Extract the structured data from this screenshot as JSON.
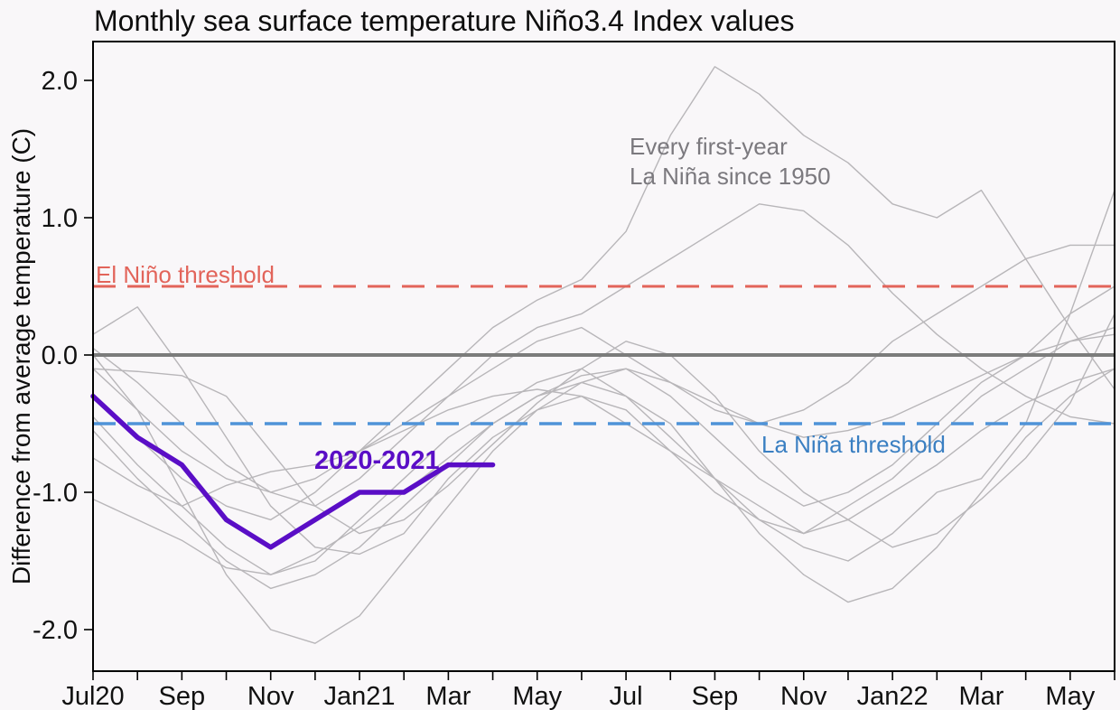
{
  "page": {
    "background": "#f9f7f9"
  },
  "annotations": {
    "background_series_label": "Every first-year\nLa Niña since 1950",
    "el_nino_label": "El Niño threshold",
    "la_nina_label": "La Niña threshold",
    "highlight_label": "2020-2021"
  },
  "colors": {
    "el_nino_line": "#e2645a",
    "la_nina_line": "#4f93d8",
    "la_nina_text": "#3a7fc2",
    "zero_line": "#7c7c7c",
    "highlight": "#5a0ec6",
    "background_series": "#b8b6b9",
    "axis": "#000000",
    "tick_text": "#111111"
  },
  "chart_data": {
    "type": "line",
    "title": "Monthly sea surface temperature Niño3.4 Index values",
    "xlabel": "",
    "ylabel": "Difference from average temperature (C)",
    "grid": false,
    "legend_position": "none (inline text annotations)",
    "ylim": [
      -2.32,
      2.29
    ],
    "ytick_values": [
      2.0,
      1.0,
      0.0,
      -1.0,
      -2.0
    ],
    "ytick_labels": [
      "2.0",
      "1.0",
      "0.0",
      "-1.0",
      "-2.0"
    ],
    "months": [
      "Jul20",
      "Aug20",
      "Sep20",
      "Oct20",
      "Nov20",
      "Dec20",
      "Jan21",
      "Feb21",
      "Mar21",
      "Apr21",
      "May21",
      "Jun21",
      "Jul21",
      "Aug21",
      "Sep21",
      "Oct21",
      "Nov21",
      "Dec21",
      "Jan22",
      "Feb22",
      "Mar22",
      "Apr22",
      "May22",
      "Jun22"
    ],
    "xtick_month_indices": [
      0,
      2,
      4,
      6,
      8,
      10,
      12,
      14,
      16,
      18,
      20,
      22
    ],
    "xtick_labels": [
      "Jul20",
      "Sep",
      "Nov",
      "Jan21",
      "Mar",
      "May",
      "Jul",
      "Sep",
      "Nov",
      "Jan22",
      "Mar",
      "May"
    ],
    "reference_lines": [
      {
        "name": "el-nino-threshold",
        "label": "El Niño threshold",
        "value": 0.5,
        "style": "dashed",
        "color": "#e2645a",
        "width": 3
      },
      {
        "name": "zero-line",
        "label": "",
        "value": 0.0,
        "style": "solid",
        "color": "#7c7c7c",
        "width": 4
      },
      {
        "name": "la-nina-threshold",
        "label": "La Niña threshold",
        "value": -0.5,
        "style": "dashed",
        "color": "#4f93d8",
        "width": 3.5
      }
    ],
    "highlight_series": {
      "label": "2020-2021",
      "color": "#5a0ec6",
      "start_month": "Jul20",
      "values": [
        -0.3,
        -0.6,
        -0.8,
        -1.2,
        -1.4,
        -1.2,
        -1.0,
        -1.0,
        -0.8,
        -0.8
      ]
    },
    "background_series": {
      "label": "Every first-year La Niña since 1950",
      "color": "#b8b6b9",
      "series": [
        [
          0.15,
          0.35,
          -0.1,
          -0.6,
          -1.1,
          -1.4,
          -1.45,
          -1.3,
          -0.9,
          -0.6,
          -0.4,
          -0.3,
          -0.4,
          -0.7,
          -1.0,
          -1.2,
          -1.3,
          -1.1,
          -0.9,
          -0.6,
          -0.3,
          -0.1,
          0.1,
          0.2
        ],
        [
          -0.3,
          -0.6,
          -0.9,
          -1.1,
          -1.2,
          -1.0,
          -0.7,
          -0.4,
          -0.1,
          0.2,
          0.4,
          0.55,
          0.9,
          1.6,
          2.1,
          1.9,
          1.6,
          1.4,
          1.1,
          1.0,
          1.2,
          0.7,
          0.2,
          -0.25
        ],
        [
          0.0,
          -0.4,
          -1.0,
          -1.6,
          -2.0,
          -2.1,
          -1.9,
          -1.5,
          -1.1,
          -0.7,
          -0.4,
          -0.2,
          -0.1,
          -0.3,
          -0.6,
          -0.9,
          -1.1,
          -1.0,
          -0.8,
          -0.5,
          -0.2,
          0.0,
          0.3,
          0.5
        ],
        [
          -0.1,
          -0.4,
          -0.7,
          -0.9,
          -1.0,
          -1.1,
          -0.9,
          -0.6,
          -0.3,
          0.0,
          0.2,
          0.3,
          0.5,
          0.7,
          0.9,
          1.1,
          1.05,
          0.8,
          0.45,
          0.15,
          -0.1,
          -0.3,
          -0.45,
          -0.5
        ],
        [
          -0.45,
          -0.8,
          -1.1,
          -1.4,
          -1.6,
          -1.5,
          -1.2,
          -0.9,
          -0.6,
          -0.4,
          -0.2,
          -0.1,
          -0.3,
          -0.6,
          -0.9,
          -1.2,
          -1.4,
          -1.5,
          -1.3,
          -1.0,
          -0.9,
          -0.5,
          0.3,
          1.2
        ],
        [
          -0.55,
          -0.9,
          -1.2,
          -1.5,
          -1.7,
          -1.6,
          -1.4,
          -1.1,
          -0.8,
          -0.5,
          -0.3,
          -0.2,
          -0.3,
          -0.5,
          -0.9,
          -1.3,
          -1.6,
          -1.8,
          -1.7,
          -1.4,
          -1.0,
          -0.6,
          -0.3,
          -0.1
        ],
        [
          0.05,
          -0.2,
          -0.5,
          -0.8,
          -1.0,
          -0.9,
          -0.7,
          -0.5,
          -0.3,
          -0.1,
          0.1,
          0.2,
          0.0,
          -0.2,
          -0.4,
          -0.5,
          -0.4,
          -0.2,
          0.1,
          0.3,
          0.5,
          0.7,
          0.8,
          0.8
        ],
        [
          -0.75,
          -0.95,
          -1.1,
          -0.95,
          -0.85,
          -0.8,
          -0.7,
          -0.55,
          -0.4,
          -0.3,
          -0.25,
          -0.3,
          -0.5,
          -0.7,
          -0.9,
          -1.1,
          -1.3,
          -1.2,
          -1.0,
          -0.8,
          -0.55,
          -0.35,
          -0.2,
          -0.1
        ],
        [
          -1.05,
          -1.2,
          -1.35,
          -1.55,
          -1.6,
          -1.45,
          -1.25,
          -1.0,
          -0.75,
          -0.5,
          -0.3,
          -0.15,
          -0.1,
          -0.2,
          -0.35,
          -0.5,
          -0.6,
          -0.55,
          -0.45,
          -0.3,
          -0.15,
          0.0,
          0.1,
          0.15
        ],
        [
          -0.1,
          -0.12,
          -0.15,
          -0.3,
          -0.7,
          -1.1,
          -1.3,
          -1.2,
          -0.95,
          -0.65,
          -0.35,
          -0.1,
          0.1,
          0.0,
          -0.3,
          -0.7,
          -1.0,
          -1.2,
          -1.4,
          -1.3,
          -1.05,
          -0.75,
          -0.35,
          0.3
        ]
      ]
    }
  }
}
